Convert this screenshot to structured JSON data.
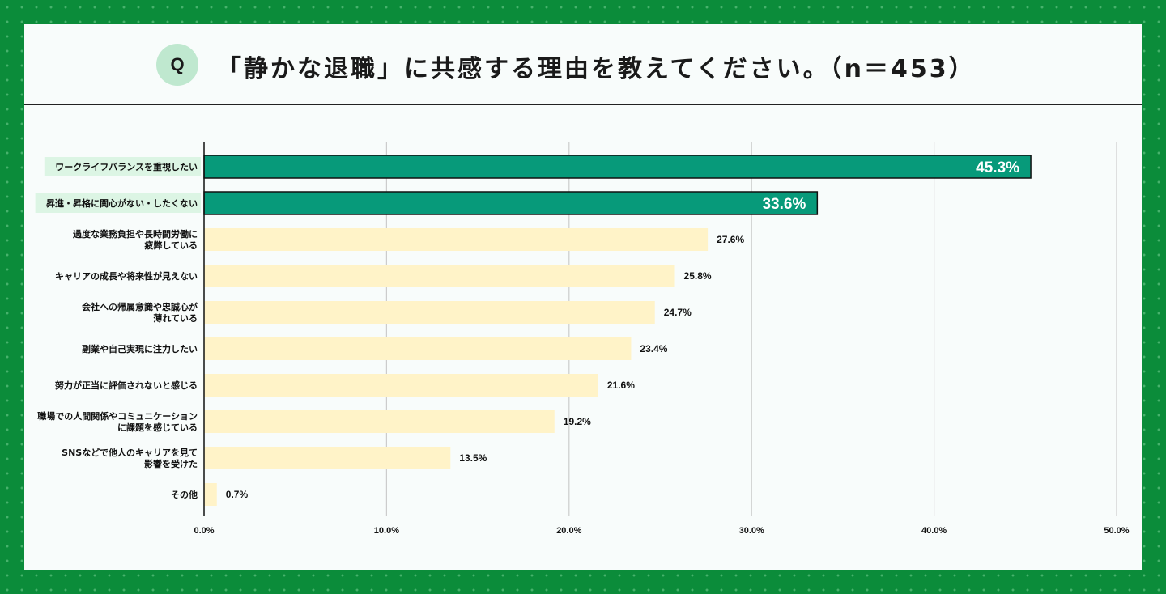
{
  "header": {
    "badge": "Q",
    "title": "「静かな退職」に共感する理由を教えてください。（n＝453）"
  },
  "colors": {
    "border_green": "#0b8c3a",
    "highlight_bar": "#079a7a",
    "normal_bar": "#fff3c8",
    "highlight_label_bg": "#dcf5e4",
    "grid": "#cccccc"
  },
  "chart_data": {
    "type": "bar",
    "orientation": "horizontal",
    "title": "「静かな退職」に共感する理由を教えてください。（n＝453）",
    "categories": [
      [
        "ワークライフバランスを重視したい"
      ],
      [
        "昇進・昇格に関心がない・したくない"
      ],
      [
        "過度な業務負担や長時間労働に",
        "疲弊している"
      ],
      [
        "キャリアの成長や将来性が見えない"
      ],
      [
        "会社への帰属意識や忠誠心が",
        "薄れている"
      ],
      [
        "副業や自己実現に注力したい"
      ],
      [
        "努力が正当に評価されないと感じる"
      ],
      [
        "職場での人間関係やコミュニケーション",
        "に課題を感じている"
      ],
      [
        "SNSなどで他人のキャリアを見て",
        "影響を受けた"
      ],
      [
        "その他"
      ]
    ],
    "values": [
      45.3,
      33.6,
      27.6,
      25.8,
      24.7,
      23.4,
      21.6,
      19.2,
      13.5,
      0.7
    ],
    "value_labels": [
      "45.3%",
      "33.6%",
      "27.6%",
      "25.8%",
      "24.7%",
      "23.4%",
      "21.6%",
      "19.2%",
      "13.5%",
      "0.7%"
    ],
    "highlighted": [
      true,
      true,
      false,
      false,
      false,
      false,
      false,
      false,
      false,
      false
    ],
    "xlim": [
      0,
      50
    ],
    "xticks": [
      "0.0%",
      "10.0%",
      "20.0%",
      "30.0%",
      "40.0%",
      "50.0%"
    ],
    "xtick_values": [
      0,
      10,
      20,
      30,
      40,
      50
    ],
    "grid": true
  }
}
